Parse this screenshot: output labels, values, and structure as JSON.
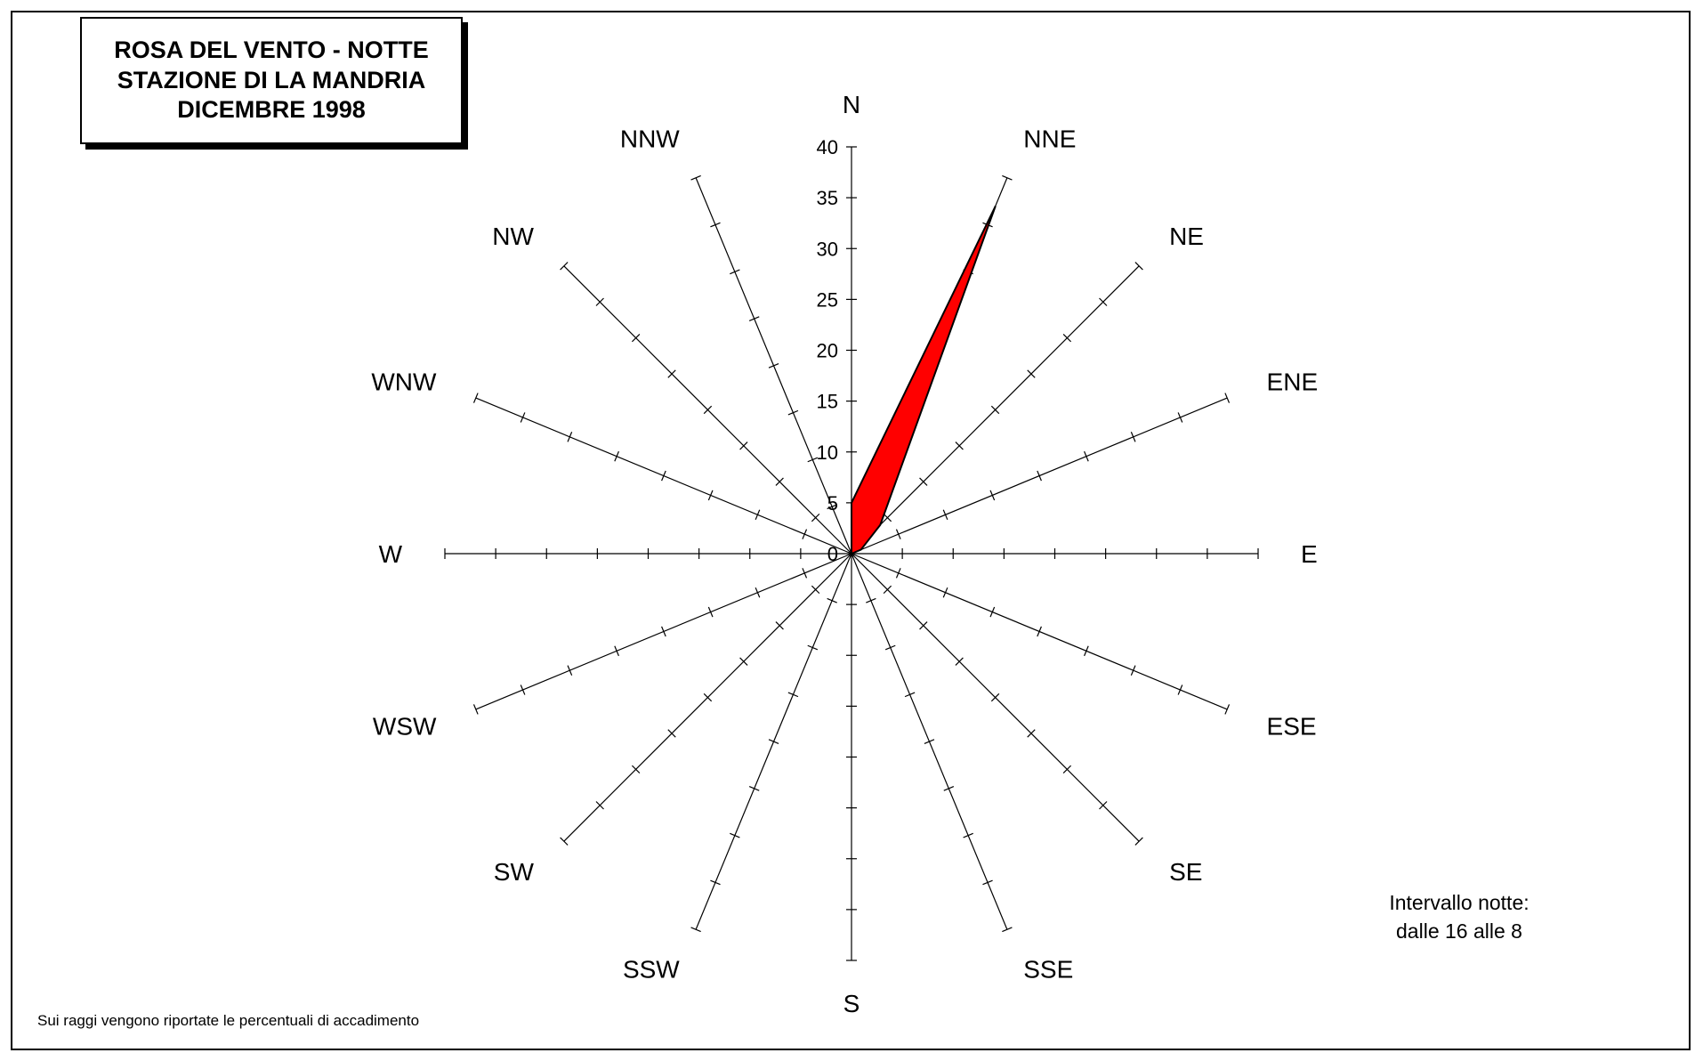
{
  "title_lines": [
    "ROSA DEL VENTO - NOTTE",
    "STAZIONE DI LA MANDRIA",
    "DICEMBRE 1998"
  ],
  "footnote": "Sui raggi vengono riportate le percentuali di accadimento",
  "interval_note": [
    "Intervallo notte:",
    "dalle 16 alle 8"
  ],
  "colors": {
    "fill": "#ff0000",
    "stroke": "#000000",
    "axis": "#000000"
  },
  "chart_data": {
    "type": "radar",
    "directions": [
      "N",
      "NNE",
      "NE",
      "ENE",
      "E",
      "ESE",
      "SE",
      "SSE",
      "S",
      "SSW",
      "SW",
      "WSW",
      "W",
      "WNW",
      "NW",
      "NNW"
    ],
    "values": [
      5,
      37,
      4,
      1,
      0,
      0,
      0,
      0,
      0,
      0,
      0,
      0,
      0,
      0,
      0,
      0
    ],
    "radial_ticks": [
      "0",
      "5",
      "10",
      "15",
      "20",
      "25",
      "30",
      "35",
      "40"
    ],
    "rmax": 40,
    "tick_step": 5
  }
}
